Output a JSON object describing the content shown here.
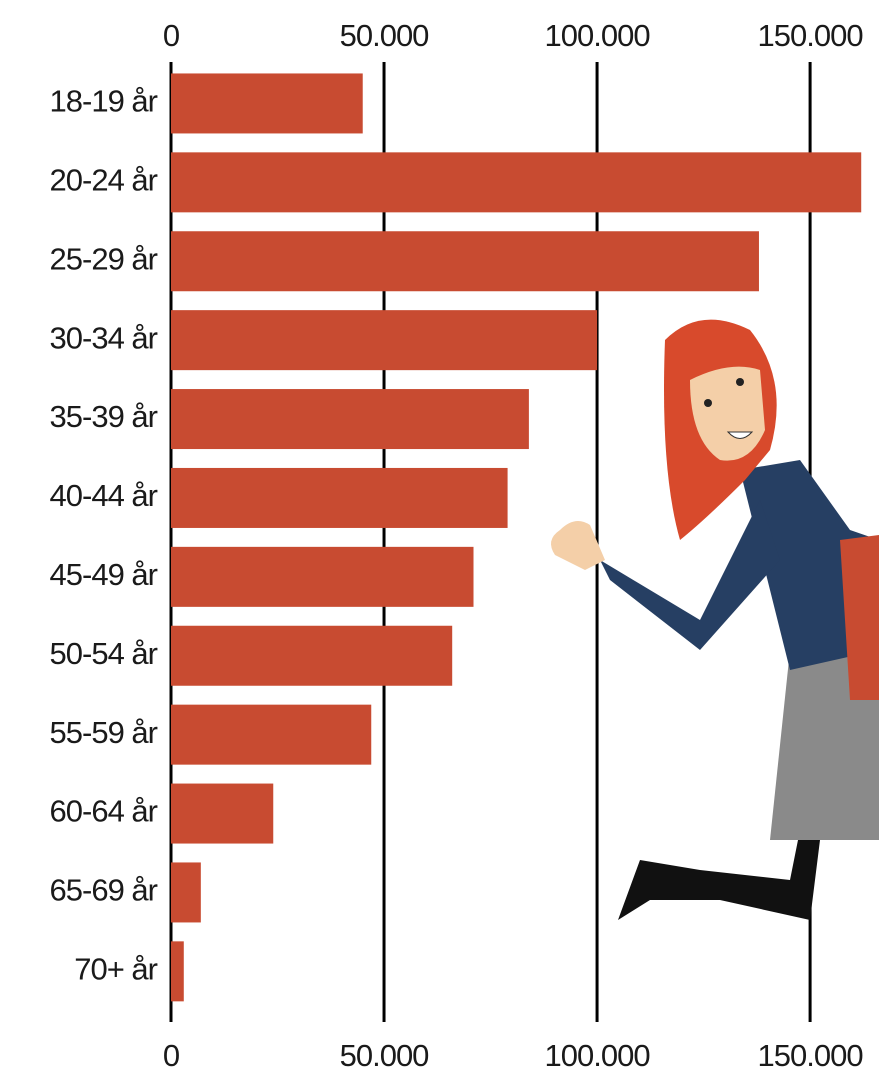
{
  "chart_data": {
    "type": "bar",
    "orientation": "horizontal",
    "categories": [
      "18-19 år",
      "20-24 år",
      "25-29 år",
      "30-34 år",
      "35-39 år",
      "40-44 år",
      "45-49 år",
      "50-54 år",
      "55-59 år",
      "60-64 år",
      "65-69 år",
      "70+ år"
    ],
    "values": [
      45000,
      162000,
      138000,
      100000,
      84000,
      79000,
      71000,
      66000,
      47000,
      24000,
      7000,
      3000
    ],
    "color": "#c84b31",
    "xlim": [
      0,
      165000
    ],
    "xticks": [
      0,
      {
        "value": 50000,
        "label": "50.000"
      },
      {
        "value": 100000,
        "label": "100.000"
      },
      {
        "value": 150000,
        "label": "150.000"
      }
    ],
    "grid": true
  }
}
